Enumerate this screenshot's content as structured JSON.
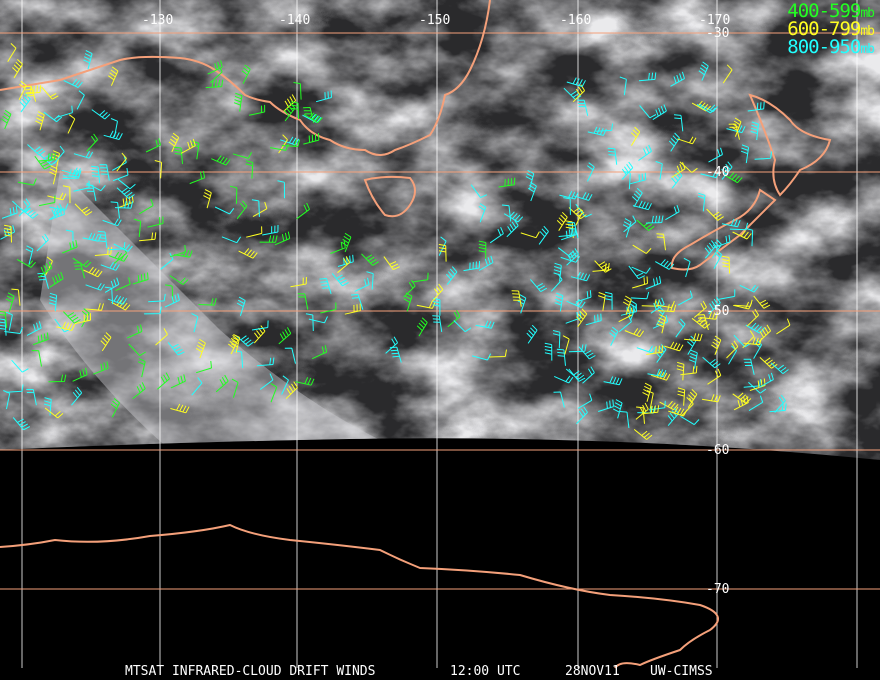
{
  "title": "MTSAT INFRARED-CLOUD DRIFT WINDS",
  "time": "12:00 UTC",
  "date": "28NOV11",
  "source": "UW-CIMSS",
  "legend": [
    {
      "range": "400-599",
      "unit": "mb",
      "color": "#22ff22"
    },
    {
      "range": "600-799",
      "unit": "mb",
      "color": "#ffff22"
    },
    {
      "range": "800-950",
      "unit": "mb",
      "color": "#22ffff"
    }
  ],
  "longitude_labels": [
    "-130",
    "-140",
    "-150",
    "-160",
    "-170"
  ],
  "latitude_labels": [
    "-30",
    "-40",
    "-50",
    "-60",
    "-70"
  ],
  "colors": {
    "coastline": "#f4a07a",
    "grid_lon": "#ffffff",
    "grid_lat": "#f4a07a"
  }
}
